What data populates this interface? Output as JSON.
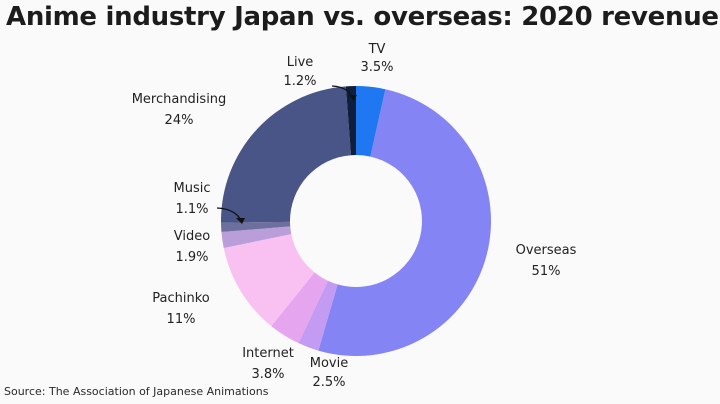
{
  "chart_data": {
    "type": "pie",
    "title": "Anime industry Japan vs. overseas: 2020 revenue",
    "source": "Source: The Association of Japanese Animations",
    "slices": [
      {
        "name": "TV",
        "label": "TV",
        "value_label": "3.5%",
        "value": 3.5,
        "color": "#1f78f2"
      },
      {
        "name": "Overseas",
        "label": "Overseas",
        "value_label": "51%",
        "value": 51,
        "color": "#8484f5"
      },
      {
        "name": "Movie",
        "label": "Movie",
        "value_label": "2.5%",
        "value": 2.5,
        "color": "#c39bf2"
      },
      {
        "name": "Internet",
        "label": "Internet",
        "value_label": "3.8%",
        "value": 3.8,
        "color": "#e6a6ef"
      },
      {
        "name": "Pachinko",
        "label": "Pachinko",
        "value_label": "11%",
        "value": 11,
        "color": "#f8c1f2"
      },
      {
        "name": "Video",
        "label": "Video",
        "value_label": "1.9%",
        "value": 1.9,
        "color": "#ba9ed9"
      },
      {
        "name": "Music",
        "label": "Music",
        "value_label": "1.1%",
        "value": 1.1,
        "color": "#6d6f9e"
      },
      {
        "name": "Merchandising",
        "label": "Merchandising",
        "value_label": "24%",
        "value": 24,
        "color": "#495487"
      },
      {
        "name": "Live",
        "label": "Live",
        "value_label": "1.2%",
        "value": 1.2,
        "color": "#0d1f3c"
      }
    ]
  }
}
